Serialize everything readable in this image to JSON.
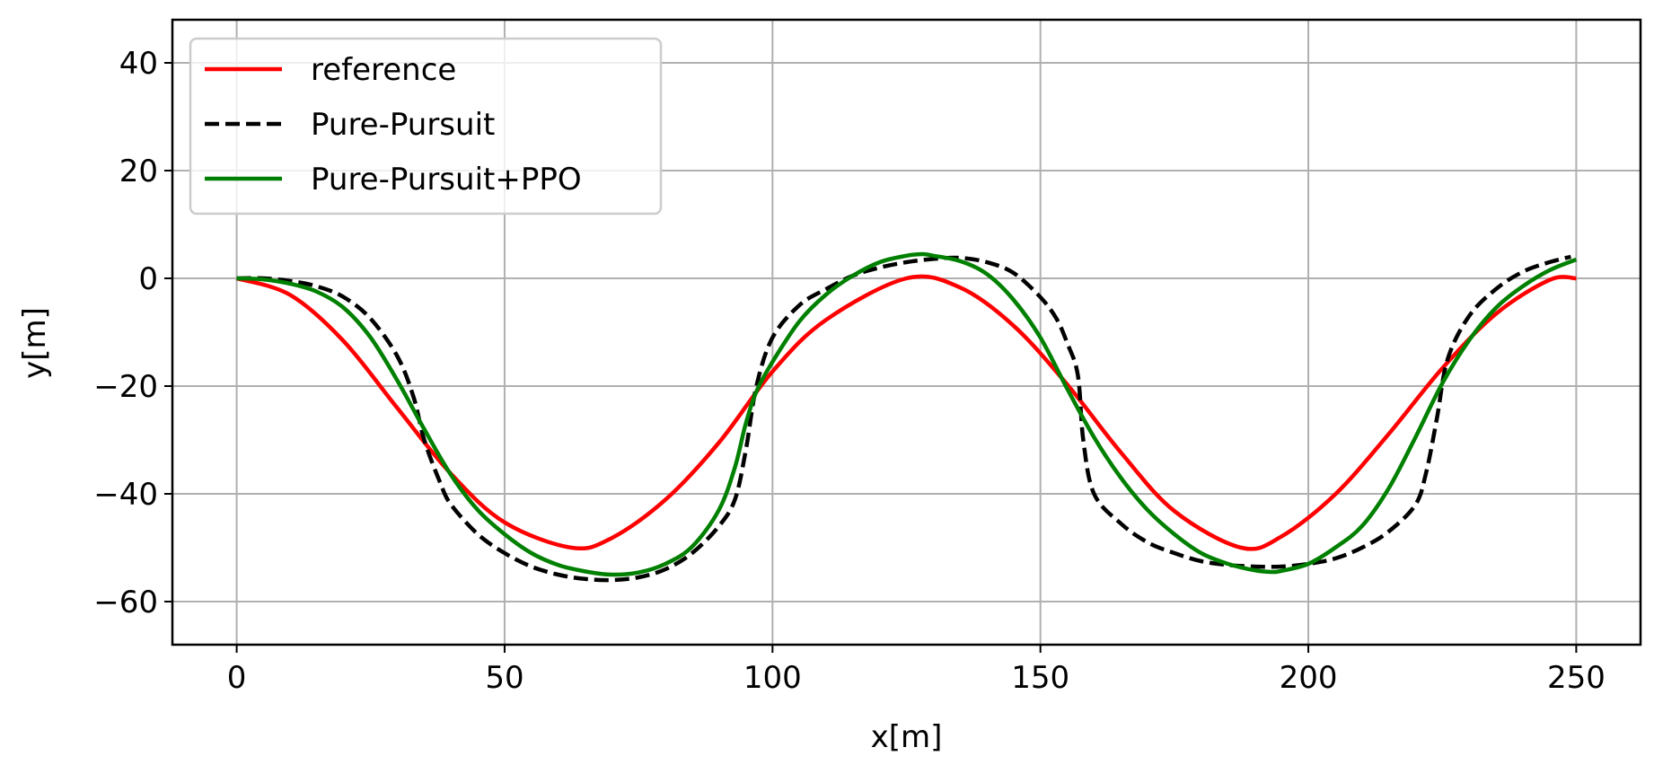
{
  "chart_data": {
    "type": "line",
    "title": "",
    "xlabel": "x[m]",
    "ylabel": "y[m]",
    "xlim": [
      -12,
      262
    ],
    "ylim": [
      -68,
      48
    ],
    "xticks": [
      0,
      50,
      100,
      150,
      200,
      250
    ],
    "yticks": [
      40,
      20,
      0,
      -20,
      -40,
      -60
    ],
    "xtick_labels": [
      "0",
      "50",
      "100",
      "150",
      "200",
      "250"
    ],
    "ytick_labels": [
      "40",
      "20",
      "0",
      "−20",
      "−40",
      "−60"
    ],
    "grid": true,
    "legend_position": "upper-left",
    "series": [
      {
        "name": "reference",
        "color": "#ff0000",
        "style": "solid",
        "x": [
          0,
          10,
          20,
          30,
          40,
          50,
          62.5,
          70,
          80,
          90,
          100,
          110,
          125,
          135,
          145,
          155,
          165,
          175,
          187.5,
          195,
          205,
          215,
          225,
          235,
          245,
          250
        ],
        "y": [
          0,
          -3.1,
          -11.7,
          -24.1,
          -36.3,
          -45.3,
          -50,
          -48.2,
          -41.1,
          -30.5,
          -17.3,
          -7.7,
          0,
          -1.7,
          -8.8,
          -19.7,
          -32.3,
          -43.2,
          -50,
          -47.9,
          -40.1,
          -28.9,
          -16.7,
          -6.6,
          -0.3,
          0
        ]
      },
      {
        "name": "Pure-Pursuit",
        "color": "#000000",
        "style": "dashed",
        "x": [
          0,
          5,
          10,
          15,
          20,
          25,
          30,
          33,
          35,
          38,
          40,
          45,
          50,
          55,
          60,
          65,
          70,
          75,
          80,
          85,
          90,
          93,
          95,
          97,
          100,
          105,
          110,
          115,
          120,
          125,
          130,
          135,
          140,
          145,
          150,
          153,
          155,
          157,
          158,
          160,
          165,
          170,
          175,
          180,
          185,
          190,
          195,
          200,
          205,
          210,
          215,
          220,
          222,
          224,
          226,
          230,
          235,
          240,
          245,
          249
        ],
        "y": [
          0,
          0,
          -0.5,
          -1.5,
          -3.5,
          -7.5,
          -14.5,
          -22,
          -30,
          -38,
          -42,
          -47.5,
          -51,
          -53.5,
          -55,
          -55.8,
          -56,
          -55.5,
          -54,
          -51,
          -46,
          -41,
          -32,
          -20,
          -11,
          -5,
          -2,
          0.5,
          2,
          3,
          3.6,
          3.8,
          3,
          1,
          -3.5,
          -7.5,
          -12,
          -18,
          -30,
          -40,
          -45.5,
          -49,
          -51,
          -52.5,
          -53.2,
          -53.5,
          -53.5,
          -53,
          -52,
          -50,
          -47,
          -42,
          -36,
          -26,
          -15,
          -7,
          -2,
          1.2,
          3,
          4
        ]
      },
      {
        "name": "Pure-Pursuit+PPO",
        "color": "#008000",
        "style": "solid",
        "x": [
          0,
          5,
          10,
          15,
          20,
          25,
          30,
          35,
          40,
          45,
          50,
          55,
          60,
          65,
          70,
          75,
          80,
          85,
          90,
          93,
          95,
          97,
          100,
          105,
          110,
          115,
          120,
          125,
          128,
          130,
          135,
          140,
          145,
          150,
          155,
          160,
          165,
          170,
          175,
          180,
          185,
          190,
          193,
          195,
          200,
          205,
          210,
          215,
          220,
          225,
          230,
          235,
          240,
          245,
          250
        ],
        "y": [
          0,
          -0.2,
          -1,
          -2.5,
          -5.5,
          -11,
          -19,
          -28,
          -36.5,
          -43,
          -47.5,
          -51,
          -53.2,
          -54.4,
          -55,
          -54.6,
          -53,
          -49.8,
          -43,
          -35,
          -27,
          -21,
          -15.5,
          -8,
          -3,
          0.5,
          3,
          4.2,
          4.5,
          4.2,
          3.2,
          0.8,
          -4,
          -11,
          -20.5,
          -29.5,
          -37,
          -43,
          -47.5,
          -51,
          -53,
          -54.2,
          -54.5,
          -54.3,
          -53,
          -50,
          -46,
          -39,
          -29.5,
          -19.5,
          -11.5,
          -5.5,
          -1.5,
          1.5,
          3.5
        ]
      }
    ]
  }
}
